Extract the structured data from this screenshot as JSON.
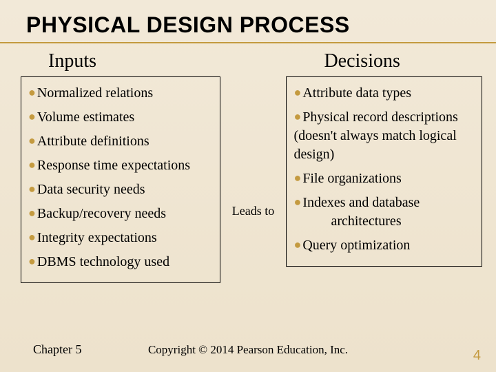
{
  "title": "PHYSICAL DESIGN PROCESS",
  "colors": {
    "accent": "#c49a3f",
    "text": "#000000",
    "bg_top": "#f2e9d8",
    "bg_bottom": "#ede2cc"
  },
  "left": {
    "heading": "Inputs",
    "items": [
      "Normalized relations",
      "Volume estimates",
      "Attribute definitions",
      "Response time expectations",
      "Data security needs",
      "Backup/recovery needs",
      "Integrity expectations",
      "DBMS technology used"
    ]
  },
  "connector": "Leads to",
  "right": {
    "heading": "Decisions",
    "items": [
      {
        "text": "Attribute data types"
      },
      {
        "text": "Physical record descriptions   (doesn't always match logical design)"
      },
      {
        "text": "File organizations"
      },
      {
        "text": "Indexes and database",
        "cont": "architectures"
      },
      {
        "text": "Query optimization"
      }
    ]
  },
  "footer": {
    "left": "Chapter 5",
    "center": "Copyright © 2014 Pearson Education, Inc.",
    "pageno": "4"
  }
}
